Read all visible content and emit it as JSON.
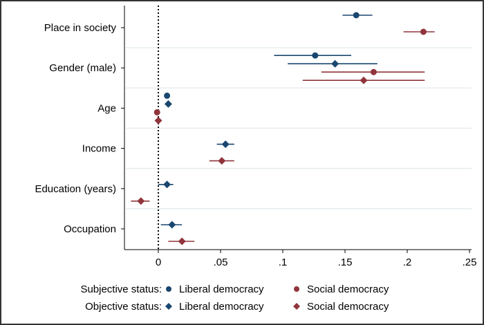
{
  "chart_data": {
    "type": "scatter",
    "subtype": "coefficient-plot-with-confidence-intervals",
    "title": "",
    "xlabel": "",
    "ylabel": "",
    "xlim": [
      -0.027,
      0.252
    ],
    "xticks": [
      0,
      0.05,
      0.1,
      0.15,
      0.2,
      0.25
    ],
    "xtick_labels": [
      "0",
      ".05",
      ".1",
      ".15",
      ".2",
      ".25"
    ],
    "reference_line": {
      "x": 0,
      "style": "dotted"
    },
    "grid": "horizontal separators between categories",
    "categories": [
      "Place in society",
      "Gender (male)",
      "Age",
      "Income",
      "Education (years)",
      "Occupation"
    ],
    "legend": {
      "placement": "bottom",
      "rows": [
        {
          "label": "Subjective status:",
          "items": [
            0,
            2
          ]
        },
        {
          "label": "Objective status:",
          "items": [
            1,
            3
          ]
        }
      ]
    },
    "series": [
      {
        "name": "Liberal democracy",
        "group": "Subjective status",
        "marker": "circle",
        "color": "#1a476f",
        "values": [
          0.159,
          0.126,
          0.007,
          null,
          null,
          null
        ],
        "ci_low": [
          0.148,
          0.093,
          0.005,
          null,
          null,
          null
        ],
        "ci_high": [
          0.172,
          0.155,
          0.009,
          null,
          null,
          null
        ]
      },
      {
        "name": "Liberal democracy",
        "group": "Objective status",
        "marker": "diamond",
        "color": "#1a476f",
        "values": [
          null,
          0.142,
          0.008,
          0.054,
          0.007,
          0.011
        ],
        "ci_low": [
          null,
          0.104,
          0.006,
          0.047,
          0.0,
          0.002
        ],
        "ci_high": [
          null,
          0.176,
          0.01,
          0.061,
          0.012,
          0.019
        ]
      },
      {
        "name": "Social democracy",
        "group": "Subjective status",
        "marker": "circle",
        "color": "#90353b",
        "values": [
          0.213,
          0.173,
          -0.001,
          null,
          null,
          null
        ],
        "ci_low": [
          0.197,
          0.131,
          -0.003,
          null,
          null,
          null
        ],
        "ci_high": [
          0.222,
          0.214,
          0.001,
          null,
          null,
          null
        ]
      },
      {
        "name": "Social democracy",
        "group": "Objective status",
        "marker": "diamond",
        "color": "#90353b",
        "values": [
          null,
          0.165,
          0.0,
          0.051,
          -0.014,
          0.019
        ],
        "ci_low": [
          null,
          0.116,
          -0.002,
          0.041,
          -0.022,
          0.008
        ],
        "ci_high": [
          null,
          0.214,
          0.002,
          0.061,
          -0.007,
          0.029
        ]
      }
    ]
  }
}
